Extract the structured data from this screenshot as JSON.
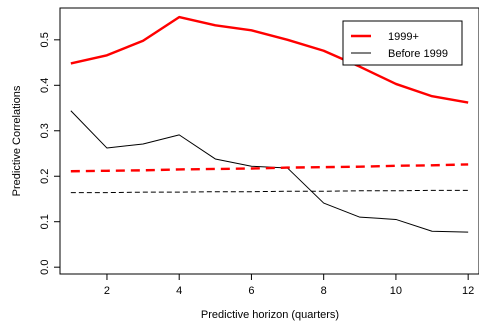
{
  "chart_data": {
    "type": "line",
    "title": "",
    "xlabel": "Predictive horizon (quarters)",
    "ylabel": "Predictive Correlations",
    "xlim": [
      0.7,
      12.3
    ],
    "ylim": [
      -0.015,
      0.57
    ],
    "x_ticks": [
      2,
      4,
      6,
      8,
      10,
      12
    ],
    "x_tick_labels": [
      "2",
      "4",
      "6",
      "8",
      "10",
      "12"
    ],
    "y_ticks": [
      0.0,
      0.1,
      0.2,
      0.3,
      0.4,
      0.5
    ],
    "y_tick_labels": [
      "0.0",
      "0.1",
      "0.2",
      "0.3",
      "0.4",
      "0.5"
    ],
    "grid": false,
    "legend_position": "top-right",
    "legend": [
      {
        "label": "1999+",
        "color": "#ff0000"
      },
      {
        "label": "Before 1999",
        "color": "#000000"
      }
    ],
    "x": [
      1,
      2,
      3,
      4,
      5,
      6,
      7,
      8,
      9,
      10,
      11,
      12
    ],
    "series": [
      {
        "name": "1999+",
        "style": "solid",
        "color": "#ff0000",
        "values": [
          0.448,
          0.466,
          0.498,
          0.55,
          0.532,
          0.521,
          0.5,
          0.476,
          0.441,
          0.403,
          0.376,
          0.362
        ]
      },
      {
        "name": "Before 1999",
        "style": "solid",
        "color": "#000000",
        "values": [
          0.344,
          0.262,
          0.271,
          0.291,
          0.238,
          0.222,
          0.218,
          0.141,
          0.11,
          0.105,
          0.079,
          0.077
        ]
      },
      {
        "style": "dashed",
        "color": "#ff0000",
        "values": [
          0.211,
          0.212,
          0.213,
          0.215,
          0.216,
          0.217,
          0.219,
          0.22,
          0.221,
          0.223,
          0.224,
          0.226
        ]
      },
      {
        "style": "dashed",
        "color": "#000000",
        "values": [
          0.164,
          0.164,
          0.165,
          0.165,
          0.166,
          0.166,
          0.167,
          0.167,
          0.168,
          0.168,
          0.169,
          0.169
        ]
      }
    ]
  }
}
